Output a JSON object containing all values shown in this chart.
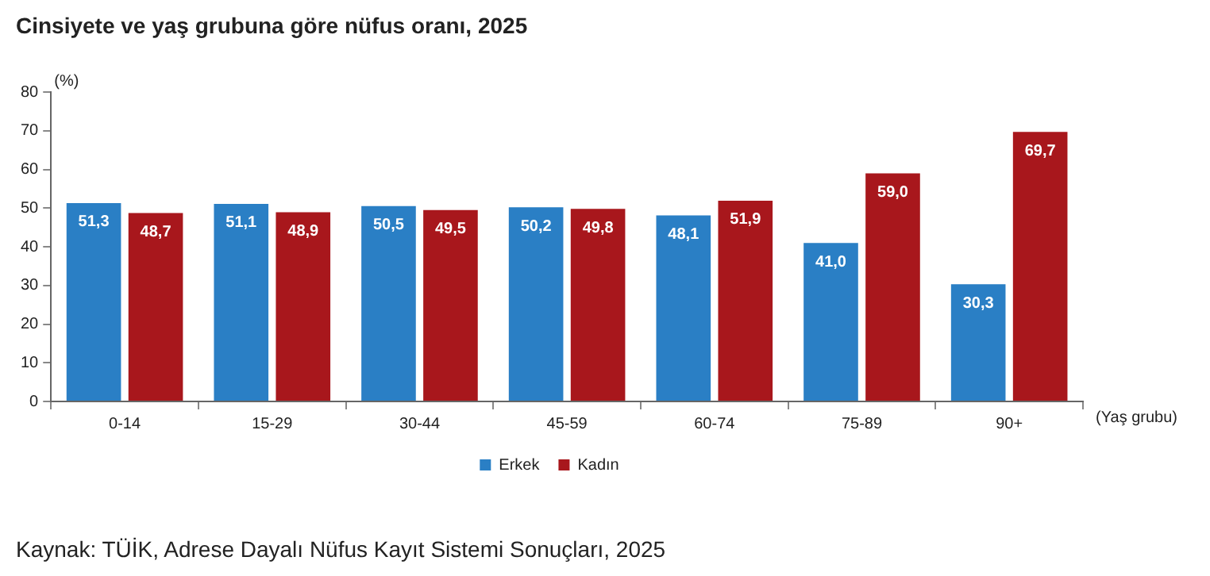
{
  "chart_data": {
    "type": "bar",
    "title": "Cinsiyete ve yaş grubuna göre nüfus oranı, 2025",
    "xlabel": "(Yaş grubu)",
    "ylabel": "(%)",
    "categories": [
      "0-14",
      "15-29",
      "30-44",
      "45-59",
      "60-74",
      "75-89",
      "90+"
    ],
    "series": [
      {
        "name": "Erkek",
        "color": "#2a7fc5",
        "values": [
          51.3,
          51.1,
          50.5,
          50.2,
          48.1,
          41.0,
          30.3
        ],
        "value_labels": [
          "51,3",
          "51,1",
          "50,5",
          "50,2",
          "48,1",
          "41,0",
          "30,3"
        ]
      },
      {
        "name": "Kadın",
        "color": "#a8171c",
        "values": [
          48.7,
          48.9,
          49.5,
          49.8,
          51.9,
          59.0,
          69.7
        ],
        "value_labels": [
          "48,7",
          "48,9",
          "49,5",
          "49,8",
          "51,9",
          "59,0",
          "69,7"
        ]
      }
    ],
    "ylim": [
      0,
      80
    ],
    "yticks": [
      0,
      10,
      20,
      30,
      40,
      50,
      60,
      70,
      80
    ],
    "grid": false,
    "legend": "bottom",
    "annotations": [
      "Kaynak: TÜİK, Adrese Dayalı Nüfus Kayıt Sistemi Sonuçları, 2025"
    ]
  }
}
